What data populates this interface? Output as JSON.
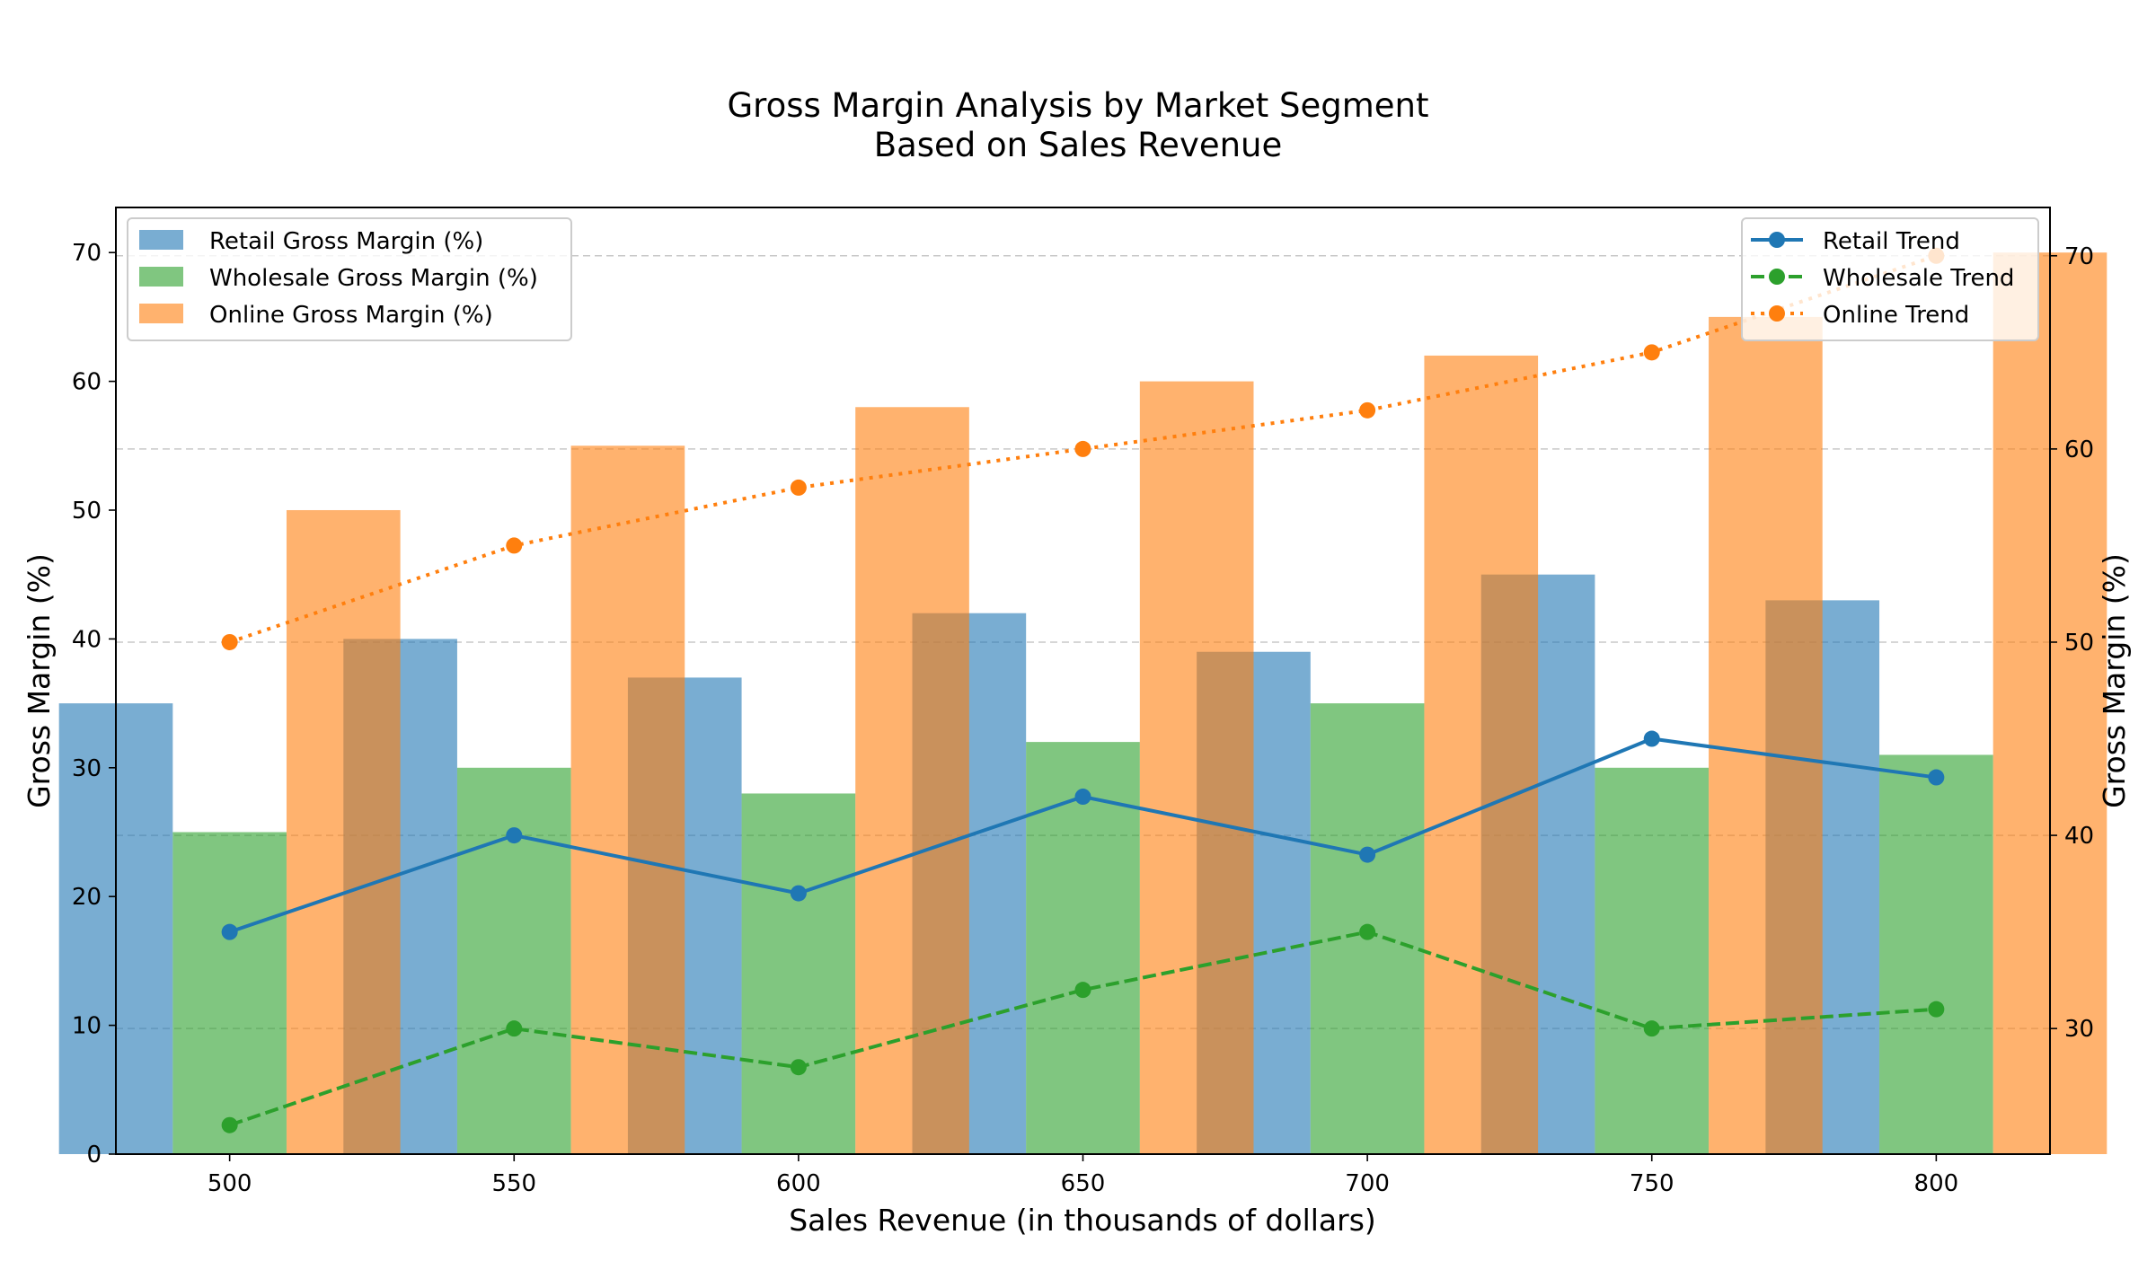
{
  "chart_data": {
    "type": "bar",
    "title_line1": "Gross Margin Analysis by Market Segment",
    "title_line2": "Based on Sales Revenue",
    "xlabel": "Sales Revenue (in thousands of dollars)",
    "ylabel": "Gross Margin (%)",
    "ylabel_right": "Gross Margin (%)",
    "x": [
      500,
      550,
      600,
      650,
      700,
      750,
      800
    ],
    "x_tick_labels": [
      "500",
      "550",
      "600",
      "650",
      "700",
      "750",
      "800"
    ],
    "xlim": [
      480,
      820
    ],
    "ylim": [
      0,
      73.5
    ],
    "ylim_right": [
      23.5,
      72.5
    ],
    "y_ticks": [
      0,
      10,
      20,
      30,
      40,
      50,
      60,
      70
    ],
    "y_tick_labels": [
      "0",
      "10",
      "20",
      "30",
      "40",
      "50",
      "60",
      "70"
    ],
    "y_ticks_right": [
      30,
      40,
      50,
      60,
      70
    ],
    "y_tick_labels_right": [
      "30",
      "40",
      "50",
      "60",
      "70"
    ],
    "grid": "horizontal dashed (right axis)",
    "bar_series": [
      {
        "name": "Retail Gross Margin (%)",
        "color": "#1f77b4",
        "values": [
          35,
          40,
          37,
          42,
          39,
          45,
          43
        ]
      },
      {
        "name": "Wholesale Gross Margin (%)",
        "color": "#2ca02c",
        "values": [
          25,
          30,
          28,
          32,
          35,
          30,
          31
        ]
      },
      {
        "name": "Online Gross Margin (%)",
        "color": "#ff7f0e",
        "values": [
          50,
          55,
          58,
          60,
          62,
          65,
          70
        ]
      }
    ],
    "line_series": [
      {
        "name": "Retail Trend",
        "color": "#1f77b4",
        "style": "solid",
        "values": [
          35,
          40,
          37,
          42,
          39,
          45,
          43
        ]
      },
      {
        "name": "Wholesale Trend",
        "color": "#2ca02c",
        "style": "dashed",
        "values": [
          25,
          30,
          28,
          32,
          35,
          30,
          31
        ]
      },
      {
        "name": "Online Trend",
        "color": "#ff7f0e",
        "style": "dotted",
        "values": [
          50,
          55,
          58,
          60,
          62,
          65,
          70
        ]
      }
    ],
    "legend_left_placement": "upper-left",
    "legend_right_placement": "upper-right"
  }
}
